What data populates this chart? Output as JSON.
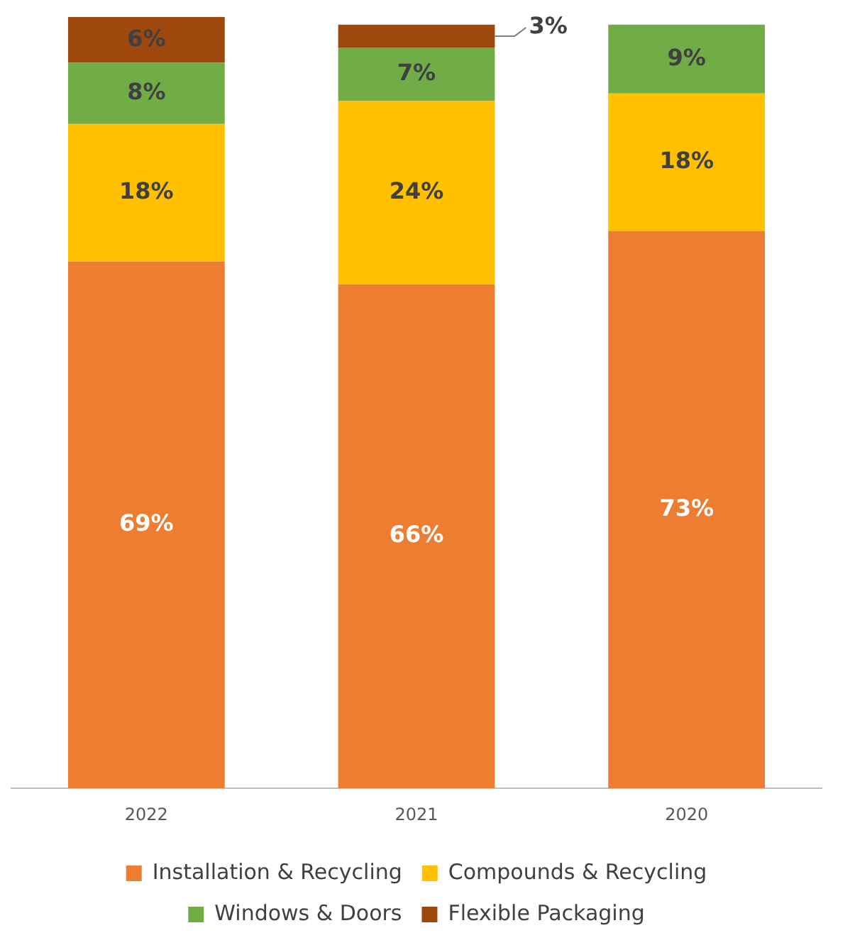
{
  "chart_data": {
    "type": "bar",
    "stacked": true,
    "categories": [
      "2022",
      "2021",
      "2020"
    ],
    "series": [
      {
        "name": "Installation & Recycling",
        "color": "#ed7d31",
        "values": [
          69,
          66,
          73
        ],
        "value_labels": [
          "69%",
          "66%",
          "73%"
        ]
      },
      {
        "name": "Compounds & Recycling",
        "color": "#ffc000",
        "values": [
          18,
          24,
          18
        ],
        "value_labels": [
          "18%",
          "24%",
          "18%"
        ]
      },
      {
        "name": "Windows & Doors",
        "color": "#70ad47",
        "values": [
          8,
          7,
          9
        ],
        "value_labels": [
          "8%",
          "7%",
          "9%"
        ]
      },
      {
        "name": "Flexible Packaging",
        "color": "#9e480e",
        "values": [
          6,
          3,
          null
        ],
        "value_labels": [
          "6%",
          "3%",
          null
        ]
      }
    ],
    "legend": "bottom",
    "grid": false
  }
}
